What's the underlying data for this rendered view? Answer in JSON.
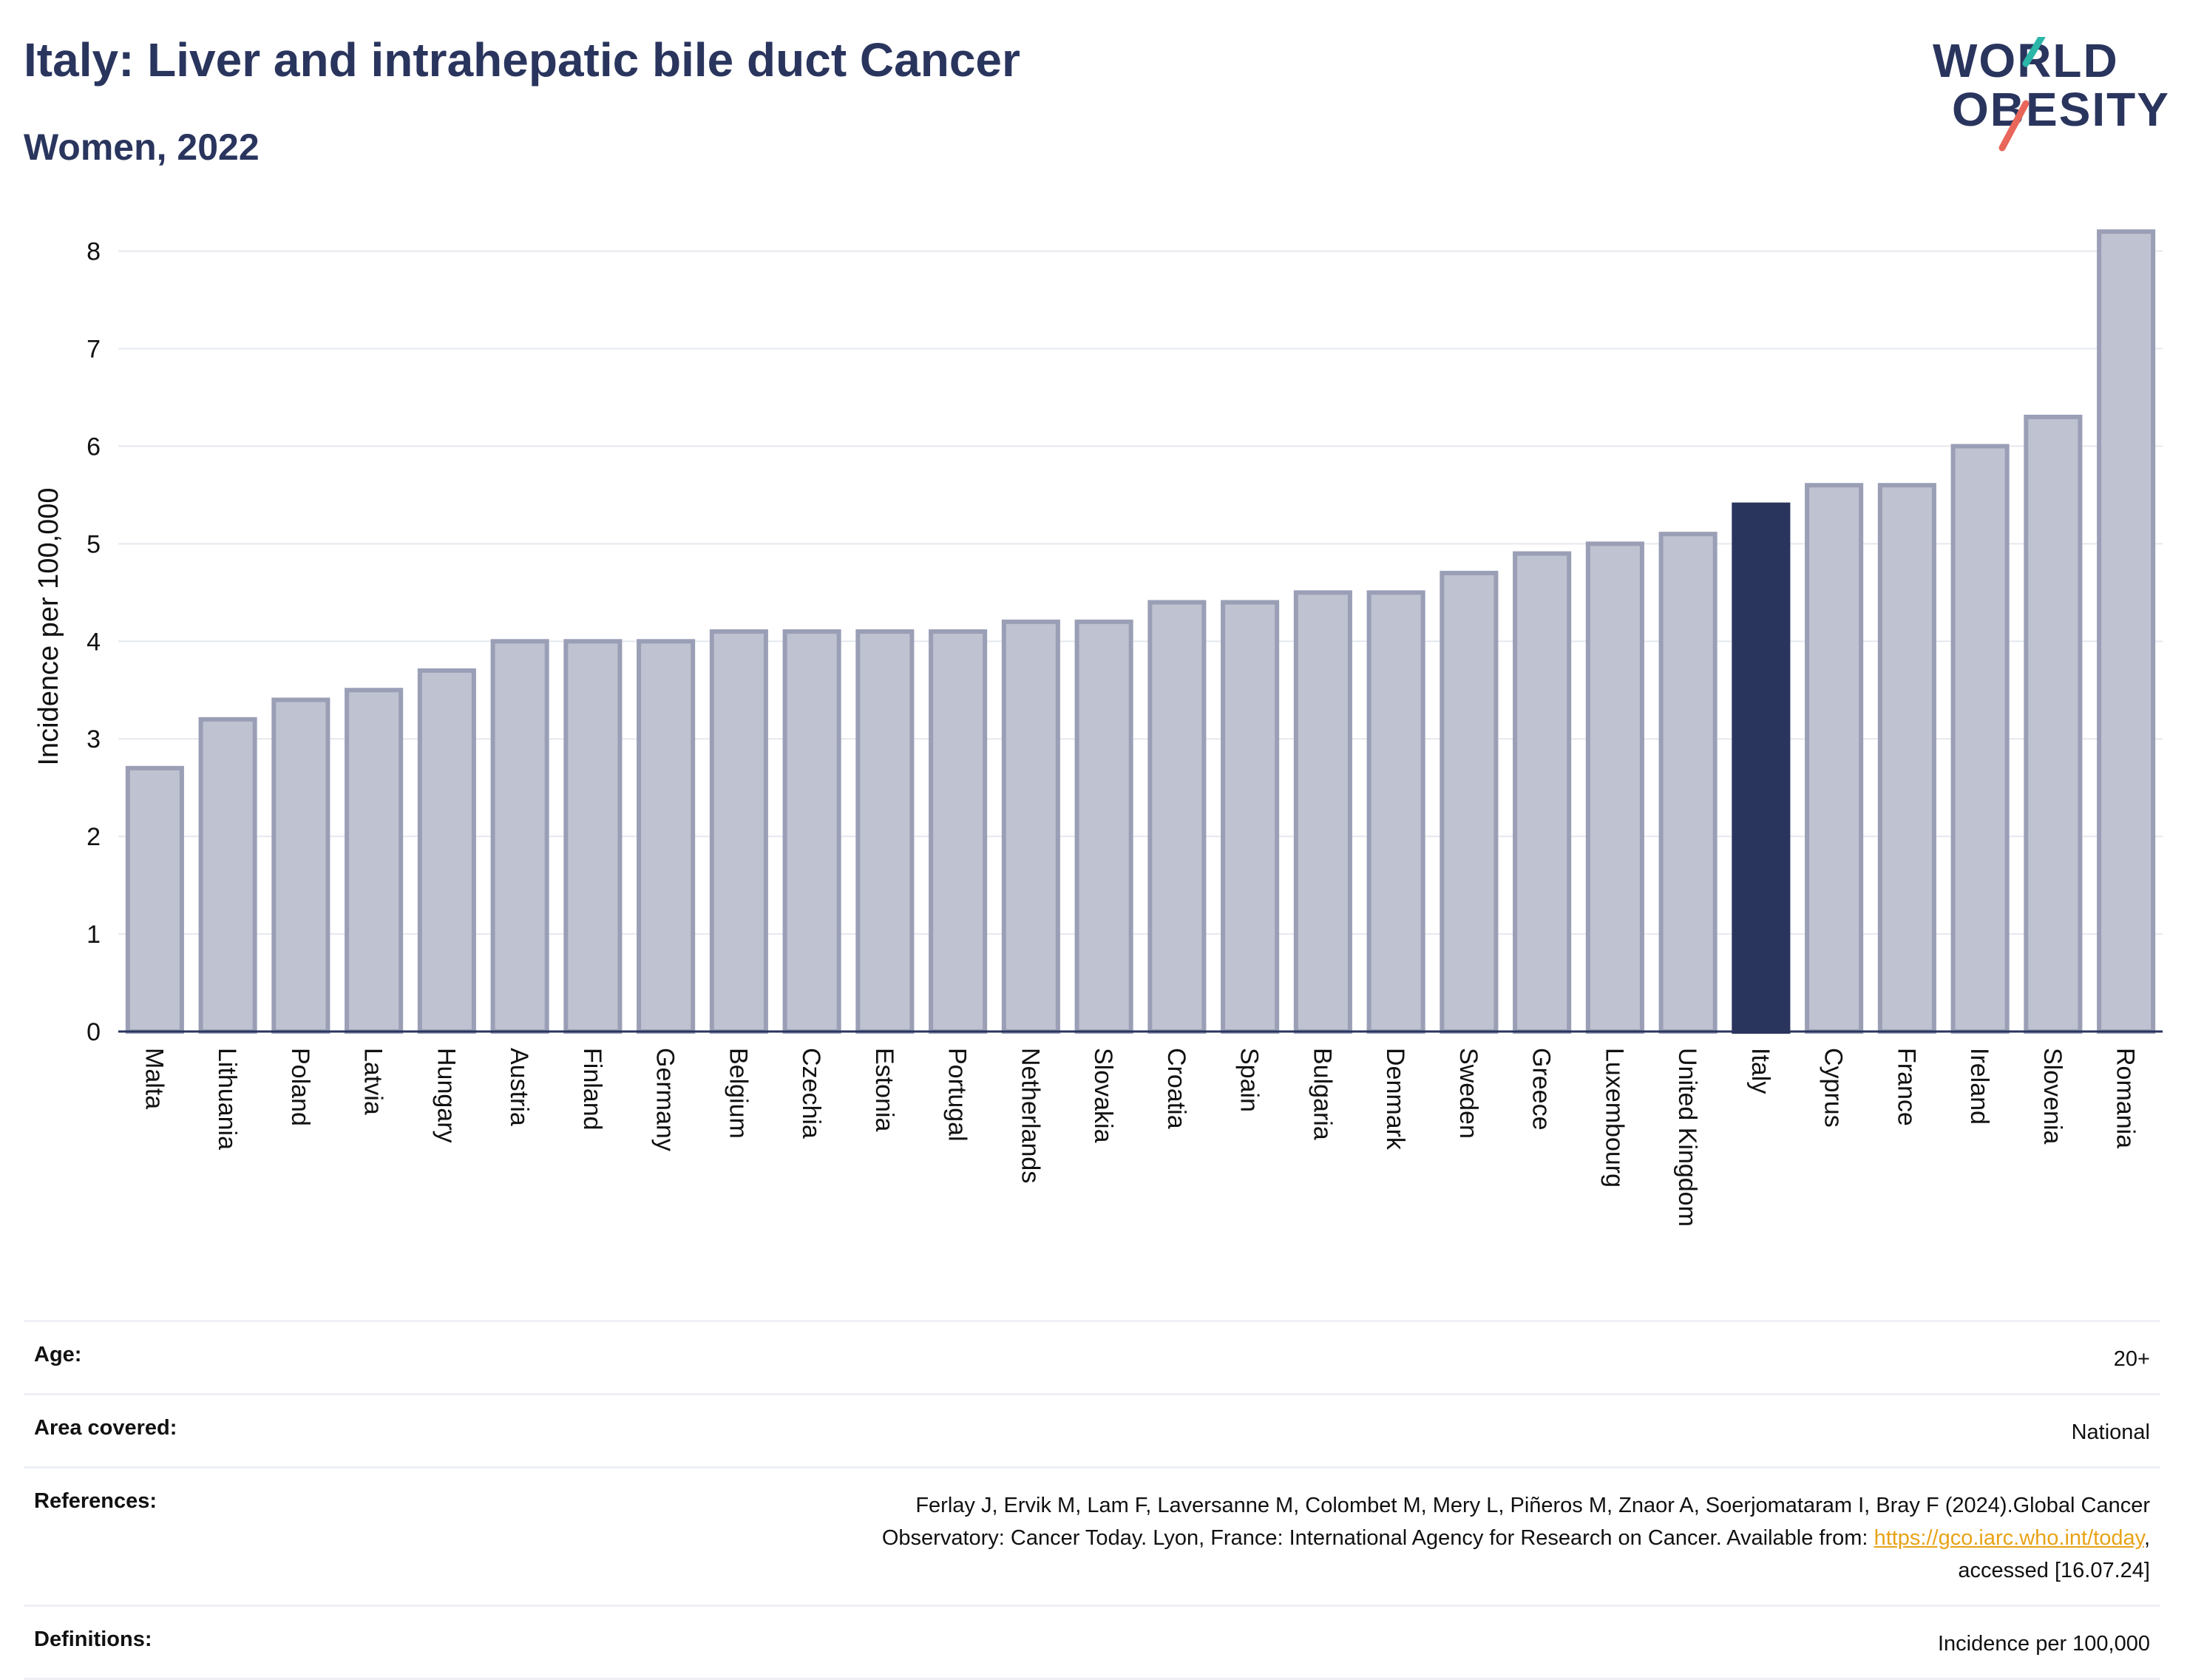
{
  "header": {
    "title": "Italy: Liver and intrahepatic bile duct Cancer",
    "subtitle": "Women, 2022"
  },
  "logo": {
    "line1": "WORLD",
    "line2": "OBESITY",
    "slash_colors": [
      "#2bb6a8",
      "#e8665a"
    ]
  },
  "colors": {
    "bar": "#bfc2d0",
    "bar_border": "#9a9fb6",
    "highlight": "#2a355e",
    "grid": "#e6e8ef",
    "axis": "#2a355e"
  },
  "chart_data": {
    "type": "bar",
    "ylabel": "Incidence per 100,000",
    "xlabel": "",
    "ylim": [
      0,
      8.3
    ],
    "yticks": [
      0,
      1,
      2,
      3,
      4,
      5,
      6,
      7,
      8
    ],
    "grid": true,
    "highlight": "Italy",
    "categories": [
      "Malta",
      "Lithuania",
      "Poland",
      "Latvia",
      "Hungary",
      "Austria",
      "Finland",
      "Germany",
      "Belgium",
      "Czechia",
      "Estonia",
      "Portugal",
      "Netherlands",
      "Slovakia",
      "Croatia",
      "Spain",
      "Bulgaria",
      "Denmark",
      "Sweden",
      "Greece",
      "Luxembourg",
      "United Kingdom",
      "Italy",
      "Cyprus",
      "France",
      "Ireland",
      "Slovenia",
      "Romania"
    ],
    "values": [
      2.7,
      3.2,
      3.4,
      3.5,
      3.7,
      4.0,
      4.0,
      4.0,
      4.1,
      4.1,
      4.1,
      4.1,
      4.2,
      4.2,
      4.4,
      4.4,
      4.5,
      4.5,
      4.7,
      4.9,
      5.0,
      5.1,
      5.4,
      5.6,
      5.6,
      6.0,
      6.3,
      8.2
    ]
  },
  "meta": {
    "age_label": "Age:",
    "age_value": "20+",
    "area_label": "Area covered:",
    "area_value": "National",
    "references_label": "References:",
    "references_line1": "Ferlay J, Ervik M, Lam F, Laversanne M, Colombet M, Mery L, Piñeros M, Znaor A, Soerjomataram I, Bray F (2024).Global Cancer",
    "references_line2": "Observatory: Cancer Today. Lyon, France: International Agency for Research on Cancer. Available from: ",
    "references_link": "https://gco.iarc.who.int/today",
    "references_line2_end": ",",
    "references_line3": "accessed [16.07.24]",
    "definitions_label": "Definitions:",
    "definitions_value": "Incidence per 100,000"
  }
}
